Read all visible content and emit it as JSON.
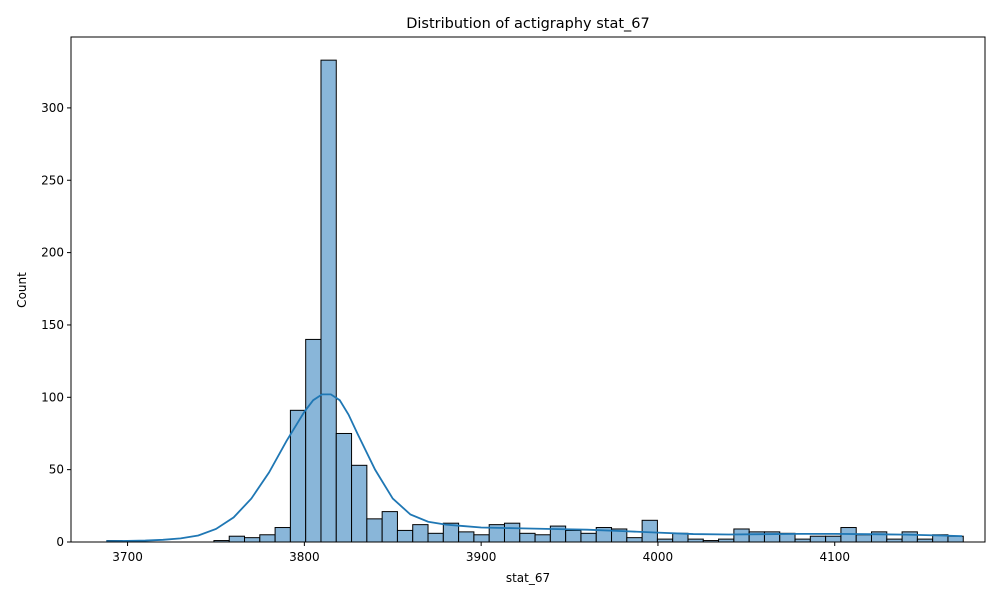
{
  "chart_data": {
    "type": "bar",
    "title": "Distribution of actigraphy stat_67",
    "xlabel": "stat_67",
    "ylabel": "Count",
    "xlim": [
      3668,
      4185
    ],
    "ylim": [
      0,
      349
    ],
    "xticks": [
      3700,
      3800,
      3900,
      4000,
      4100
    ],
    "yticks": [
      0,
      50,
      100,
      150,
      200,
      250,
      300
    ],
    "bin_start": 3688.3,
    "bin_width": 8.65,
    "counts": [
      1,
      0,
      0,
      0,
      0,
      0,
      0,
      1,
      4,
      3,
      5,
      10,
      91,
      140,
      333,
      75,
      53,
      16,
      21,
      8,
      12,
      6,
      13,
      7,
      5,
      12,
      13,
      6,
      5,
      11,
      8,
      6,
      10,
      9,
      3,
      15,
      2,
      6,
      2,
      1,
      2,
      9,
      7,
      7,
      6,
      2,
      4,
      4,
      10,
      5,
      7,
      2,
      7,
      2,
      5,
      4
    ],
    "bar_color": "#89b6d9",
    "kde_color": "#1f77b4",
    "kde": {
      "x": [
        3688,
        3700,
        3710,
        3720,
        3730,
        3740,
        3750,
        3760,
        3770,
        3780,
        3790,
        3800,
        3805,
        3810,
        3815,
        3820,
        3825,
        3830,
        3840,
        3850,
        3860,
        3870,
        3880,
        3890,
        3900,
        3920,
        3940,
        3960,
        3980,
        4000,
        4020,
        4040,
        4060,
        4080,
        4100,
        4120,
        4140,
        4160,
        4172
      ],
      "y": [
        0.6,
        0.8,
        1.0,
        1.5,
        2.5,
        4.5,
        9,
        17,
        30,
        48,
        70,
        90,
        98,
        102,
        102,
        98,
        88,
        75,
        50,
        30,
        19,
        14,
        12,
        11,
        10,
        9.5,
        9,
        8.5,
        7.5,
        6.5,
        5.5,
        5.2,
        5.4,
        5.6,
        5.6,
        5.4,
        5.1,
        4.5,
        4.0
      ]
    },
    "grid": false
  }
}
